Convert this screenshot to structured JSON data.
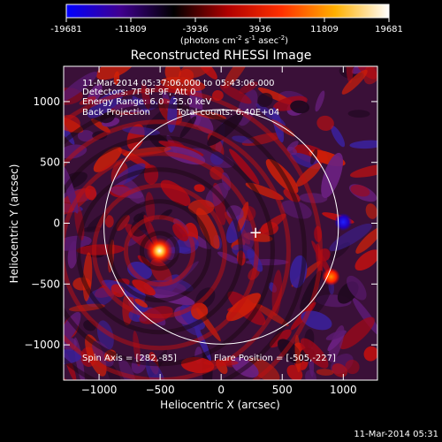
{
  "colorbar": {
    "ticks": [
      "-19681",
      "-11809",
      "-3936",
      "3936",
      "11809",
      "19681"
    ],
    "tick_values": [
      -19681,
      -11809,
      -3936,
      3936,
      11809,
      19681
    ],
    "range": [
      -19681,
      19681
    ],
    "units_main": "(photons cm",
    "units_exp1": "-2",
    "units_mid": " s",
    "units_exp2": "-1",
    "units_tail": " asec",
    "units_exp3": "-2",
    "units_close": ")",
    "colors": [
      "#0000ff",
      "#400090",
      "#000000",
      "#b00000",
      "#ff3000",
      "#ffb000",
      "#ffffff"
    ]
  },
  "plot": {
    "title": "Reconstructed RHESSI Image",
    "info_lines": [
      "11-Mar-2014 05:37:06.000 to 05:43:06.000",
      "Detectors: 7F 8F 9F, Att 0",
      "Energy Range: 6.0 - 25.0 keV"
    ],
    "method": "Back Projection",
    "total_counts": "Total counts: 6.40E+04",
    "spin_axis": "Spin Axis = [282,-85]",
    "flare_position": "Flare Position = [-505,-227]",
    "timestamp": "11-Mar-2014 05:31"
  },
  "chart_data": {
    "type": "heatmap",
    "title": "Reconstructed RHESSI Image",
    "xlabel": "Heliocentric X (arcsec)",
    "ylabel": "Heliocentric Y (arcsec)",
    "xlim": [
      -1290,
      1280
    ],
    "ylim": [
      -1290,
      1290
    ],
    "x_ticks": [
      -1000,
      -500,
      0,
      500,
      1000
    ],
    "y_ticks": [
      -1000,
      -500,
      0,
      500,
      1000
    ],
    "x_tick_labels": [
      "−1000",
      "−500",
      "0",
      "500",
      "1000"
    ],
    "y_tick_labels": [
      "−1000",
      "−500",
      "0",
      "500",
      "1000"
    ],
    "solar_disk": {
      "center": [
        0,
        -30
      ],
      "radius": 960
    },
    "marker": {
      "label": "+",
      "x": 282,
      "y": -85
    },
    "sources": [
      {
        "x": -505,
        "y": -227,
        "brightness": "peak"
      },
      {
        "x": 1000,
        "y": 10,
        "brightness": "negative"
      },
      {
        "x": 900,
        "y": -440,
        "brightness": "bright"
      }
    ],
    "grid": false
  }
}
